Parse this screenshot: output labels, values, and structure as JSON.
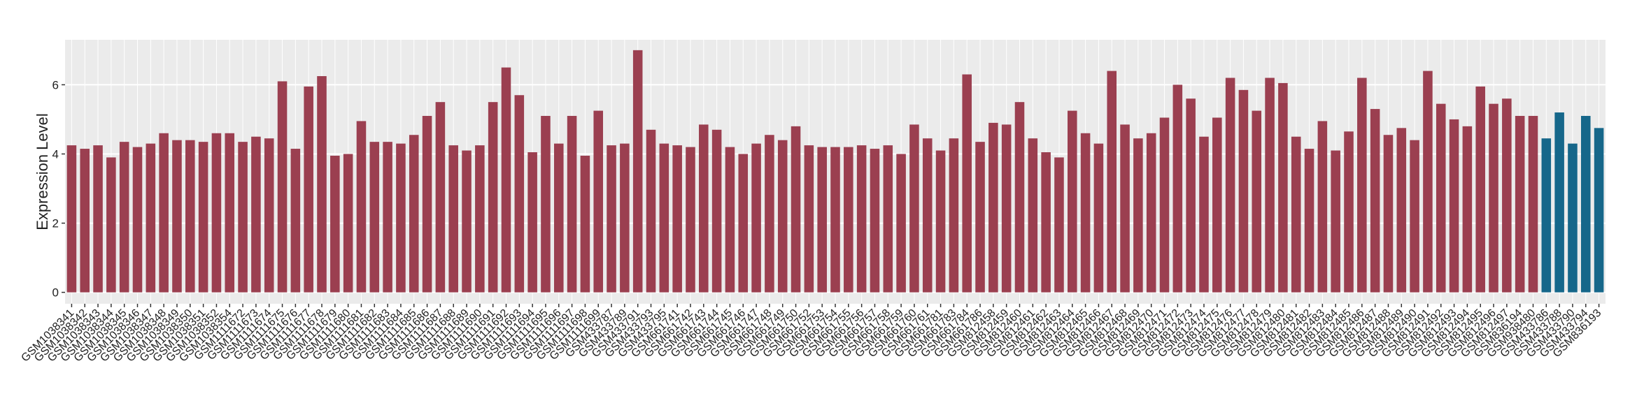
{
  "chart_data": {
    "type": "bar",
    "y_label": "Expression Level",
    "categories": [
      "GSM1038341",
      "GSM1038342",
      "GSM1038343",
      "GSM1038344",
      "GSM1038345",
      "GSM1038346",
      "GSM1038347",
      "GSM1038348",
      "GSM1038349",
      "GSM1038350",
      "GSM1038351",
      "GSM1038352",
      "GSM1038354",
      "GSM1111672",
      "GSM1111673",
      "GSM1111674",
      "GSM1111675",
      "GSM1111676",
      "GSM1111677",
      "GSM1111678",
      "GSM1111679",
      "GSM1111680",
      "GSM1111681",
      "GSM1111682",
      "GSM1111683",
      "GSM1111684",
      "GSM1111685",
      "GSM1111686",
      "GSM1111687",
      "GSM1111688",
      "GSM1111689",
      "GSM1111690",
      "GSM1111691",
      "GSM1111692",
      "GSM1111693",
      "GSM1111694",
      "GSM1111695",
      "GSM1111696",
      "GSM1111697",
      "GSM1111698",
      "GSM1111699",
      "GSM433787",
      "GSM433789",
      "GSM433791",
      "GSM433793",
      "GSM433795",
      "GSM661741",
      "GSM661742",
      "GSM661743",
      "GSM661744",
      "GSM661745",
      "GSM661746",
      "GSM661747",
      "GSM661748",
      "GSM661749",
      "GSM661750",
      "GSM661752",
      "GSM661753",
      "GSM661754",
      "GSM661755",
      "GSM661756",
      "GSM661757",
      "GSM661758",
      "GSM661759",
      "GSM661760",
      "GSM661761",
      "GSM661781",
      "GSM661783",
      "GSM661784",
      "GSM661786",
      "GSM812458",
      "GSM812459",
      "GSM812460",
      "GSM812461",
      "GSM812462",
      "GSM812463",
      "GSM812464",
      "GSM812465",
      "GSM812466",
      "GSM812467",
      "GSM812468",
      "GSM812469",
      "GSM812470",
      "GSM812471",
      "GSM812472",
      "GSM812473",
      "GSM812474",
      "GSM812475",
      "GSM812476",
      "GSM812477",
      "GSM812478",
      "GSM812479",
      "GSM812480",
      "GSM812481",
      "GSM812482",
      "GSM812483",
      "GSM812484",
      "GSM812485",
      "GSM812486",
      "GSM812487",
      "GSM812488",
      "GSM812489",
      "GSM812490",
      "GSM812491",
      "GSM812492",
      "GSM812493",
      "GSM812494",
      "GSM812495",
      "GSM812496",
      "GSM812497",
      "GSM836194",
      "GSM938480",
      "GSM433786",
      "GSM433788",
      "GSM433790",
      "GSM433794",
      "GSM836193"
    ],
    "values": [
      4.25,
      4.15,
      4.25,
      3.9,
      4.35,
      4.2,
      4.3,
      4.6,
      4.4,
      4.4,
      4.35,
      4.6,
      4.6,
      4.35,
      4.5,
      4.45,
      6.1,
      4.15,
      5.95,
      6.25,
      3.95,
      4.0,
      4.95,
      4.35,
      4.35,
      4.3,
      4.55,
      5.1,
      5.5,
      4.25,
      4.1,
      4.25,
      5.5,
      6.5,
      5.7,
      4.05,
      5.1,
      4.3,
      5.1,
      3.95,
      5.25,
      4.25,
      4.3,
      7.0,
      4.7,
      4.3,
      4.25,
      4.2,
      4.85,
      4.7,
      4.2,
      4.0,
      4.3,
      4.55,
      4.4,
      4.8,
      4.25,
      4.2,
      4.2,
      4.2,
      4.25,
      4.15,
      4.25,
      4.0,
      4.85,
      4.45,
      4.1,
      4.45,
      6.3,
      4.35,
      4.9,
      4.85,
      5.5,
      4.45,
      4.05,
      3.9,
      5.25,
      4.6,
      4.3,
      6.4,
      4.85,
      4.45,
      4.6,
      5.05,
      6.0,
      5.6,
      4.5,
      5.05,
      6.2,
      5.85,
      5.25,
      6.2,
      6.05,
      4.5,
      4.15,
      4.95,
      4.1,
      4.65,
      6.2,
      5.3,
      4.55,
      4.75,
      4.4,
      6.4,
      5.45,
      5.0,
      4.8,
      5.95,
      5.45,
      5.6,
      5.1,
      5.1,
      4.45,
      5.2,
      4.3,
      5.1,
      4.75
    ],
    "color": "#9b3f50",
    "highlight_color": "#16678a",
    "highlight_from": "GSM433786",
    "ylim": [
      -0.33,
      7.3
    ],
    "yticks": [
      0,
      2,
      4,
      6
    ],
    "grid": true
  }
}
